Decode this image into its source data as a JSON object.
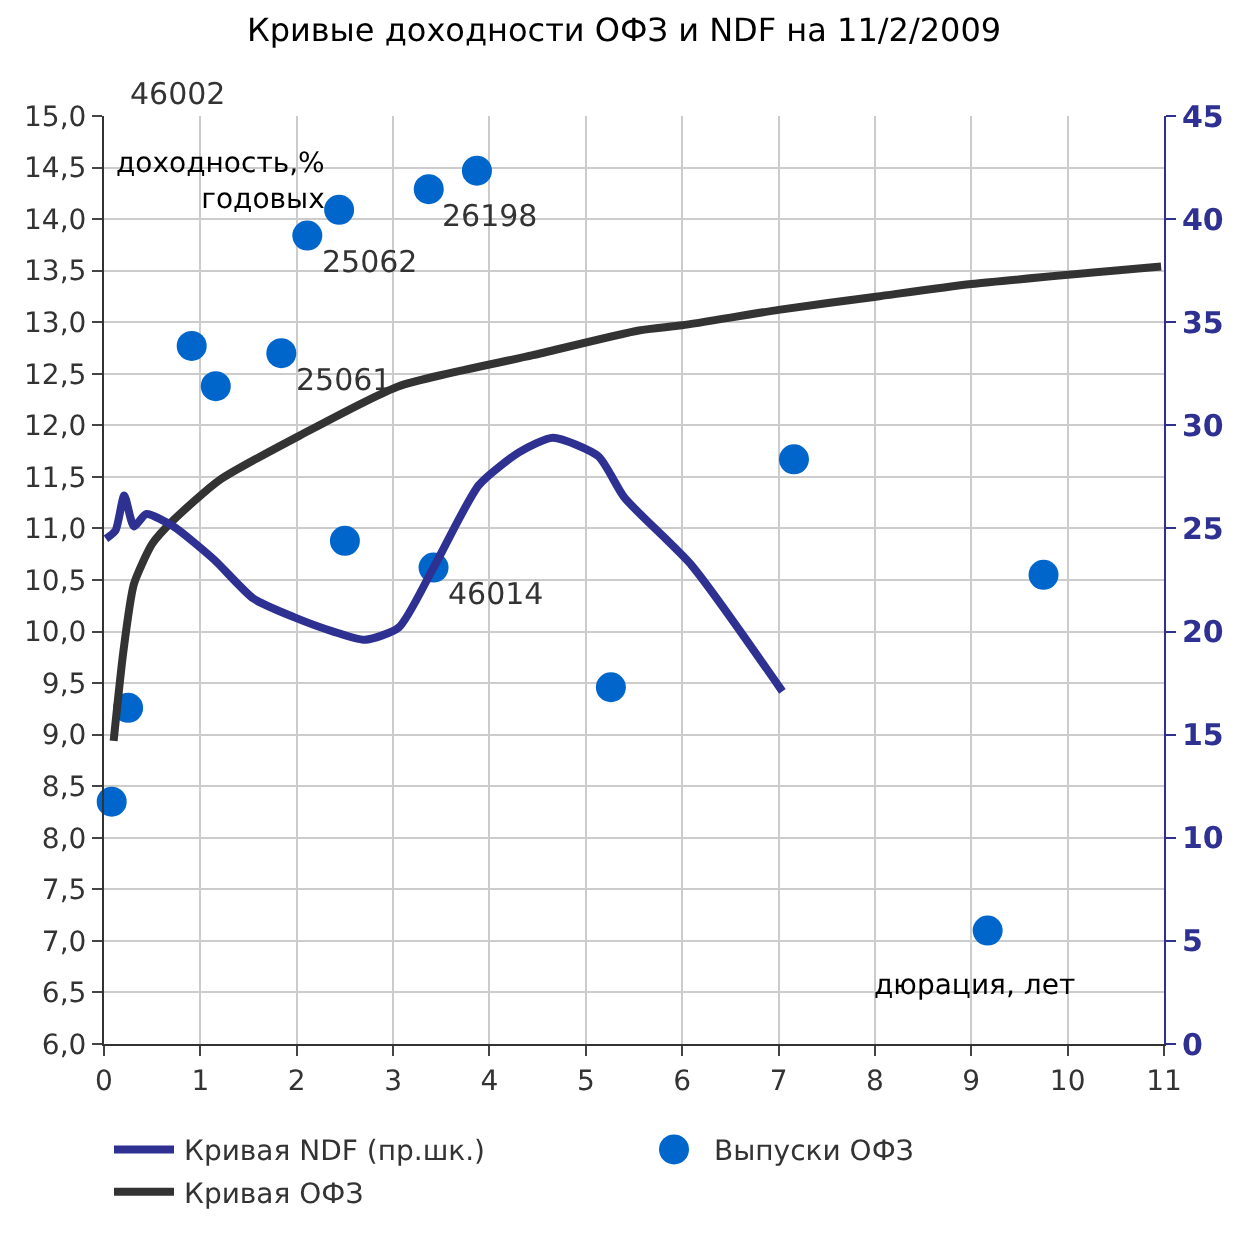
{
  "chart_data": {
    "type": "scatter",
    "title": "Кривые доходности ОФЗ и NDF на 11/2/2009",
    "xlabel": "дюрация, лет",
    "ylabel": "доходность,%\nгодовых",
    "xlim": [
      0,
      11
    ],
    "xticks": [
      0,
      1,
      2,
      3,
      4,
      5,
      6,
      7,
      8,
      9,
      10,
      11
    ],
    "ylim": [
      6,
      15
    ],
    "yticks": [
      {
        "value": 6,
        "label": "6,0"
      },
      {
        "value": 6.5,
        "label": "6,5"
      },
      {
        "value": 7,
        "label": "7,0"
      },
      {
        "value": 7.5,
        "label": "7,5"
      },
      {
        "value": 8,
        "label": "8,0"
      },
      {
        "value": 8.5,
        "label": "8,5"
      },
      {
        "value": 9,
        "label": "9,0"
      },
      {
        "value": 9.5,
        "label": "9,5"
      },
      {
        "value": 10,
        "label": "10,0"
      },
      {
        "value": 10.5,
        "label": "10,5"
      },
      {
        "value": 11,
        "label": "11,0"
      },
      {
        "value": 11.5,
        "label": "11,5"
      },
      {
        "value": 12,
        "label": "12,0"
      },
      {
        "value": 12.5,
        "label": "12,5"
      },
      {
        "value": 13,
        "label": "13,0"
      },
      {
        "value": 13.5,
        "label": "13,5"
      },
      {
        "value": 14,
        "label": "14,0"
      },
      {
        "value": 14.5,
        "label": "14,5"
      },
      {
        "value": 15,
        "label": "15,0"
      }
    ],
    "y2lim": [
      0,
      45
    ],
    "y2ticks": [
      0,
      5,
      10,
      15,
      20,
      25,
      30,
      35,
      40,
      45
    ],
    "grid": true,
    "legend": "bottom",
    "series": [
      {
        "name": "Кривая NDF (пр.шк.)",
        "type": "line",
        "axis": "y2",
        "color": "#2e3192",
        "marker": "none",
        "line_style": "solid",
        "x": [
          0.02,
          0.12,
          0.21,
          0.31,
          0.44,
          0.72,
          1.14,
          1.55,
          1.97,
          2.38,
          2.71,
          3.06,
          3.42,
          3.89,
          4.31,
          4.66,
          5.13,
          5.4,
          6.1,
          7.04
        ],
        "values": [
          24.5,
          24.9,
          26.6,
          25.1,
          25.7,
          25.1,
          23.5,
          21.6,
          20.7,
          20.0,
          19.6,
          20.2,
          23.1,
          27.1,
          28.7,
          29.4,
          28.5,
          26.5,
          23.2,
          17.1
        ]
      },
      {
        "name": "Выпуски ОФЗ",
        "color": "#0066cc",
        "marker": "circle",
        "x": [
          0.08,
          0.25,
          0.91,
          1.16,
          1.84,
          2.11,
          2.44,
          2.5,
          3.37,
          3.42,
          3.87,
          5.26,
          7.16,
          9.17,
          9.75
        ],
        "values": [
          8.35,
          9.26,
          12.77,
          12.38,
          12.7,
          13.84,
          14.09,
          10.88,
          14.29,
          10.62,
          14.47,
          9.46,
          11.67,
          7.1,
          10.55
        ]
      },
      {
        "name": "Кривая ОФЗ",
        "type": "line",
        "color": "#333333",
        "marker": "none",
        "line_style": "solid",
        "x": [
          0.1,
          0.2,
          0.31,
          0.5,
          0.72,
          1.2,
          2.03,
          3.06,
          4.45,
          5.55,
          6.0,
          7.0,
          8.03,
          9.0,
          10.97
        ],
        "values": [
          8.94,
          9.8,
          10.46,
          10.85,
          11.08,
          11.47,
          11.9,
          12.38,
          12.68,
          12.92,
          12.97,
          13.12,
          13.25,
          13.37,
          13.54
        ]
      }
    ],
    "annotations": [
      "46002",
      {
        "text": "25061",
        "x": 1.84,
        "y": 12.7
      },
      {
        "text": "25062",
        "x": 2.11,
        "y": 13.84
      },
      {
        "text": "26198",
        "x": 3.37,
        "y": 14.29
      },
      {
        "text": "46014",
        "x": 3.42,
        "y": 10.62
      }
    ]
  }
}
